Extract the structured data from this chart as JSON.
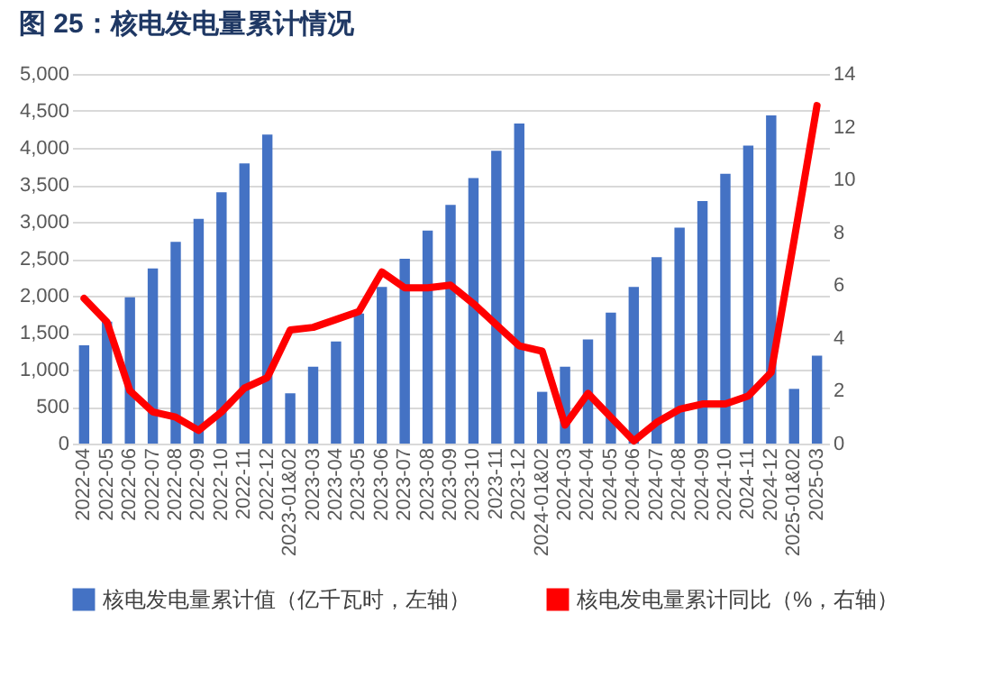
{
  "chart_data": {
    "type": "bar",
    "title": "图 25：核电发电量累计情况",
    "categories": [
      "2022-04",
      "2022-05",
      "2022-06",
      "2022-07",
      "2022-08",
      "2022-09",
      "2022-10",
      "2022-11",
      "2022-12",
      "2023-01&02",
      "2023-03",
      "2023-04",
      "2023-05",
      "2023-06",
      "2023-07",
      "2023-08",
      "2023-09",
      "2023-10",
      "2023-11",
      "2023-12",
      "2024-01&02",
      "2024-03",
      "2024-04",
      "2024-05",
      "2024-06",
      "2024-07",
      "2024-08",
      "2024-09",
      "2024-10",
      "2024-11",
      "2024-12",
      "2025-01&02",
      "2025-03"
    ],
    "series": [
      {
        "name": "核电发电量累计值（亿千瓦时，左轴）",
        "color": "#4472c4",
        "values": [
          1330,
          1650,
          1980,
          2370,
          2730,
          3040,
          3400,
          3790,
          4180,
          680,
          1040,
          1380,
          1760,
          2120,
          2500,
          2880,
          3230,
          3590,
          3960,
          4330,
          700,
          1040,
          1410,
          1770,
          2120,
          2520,
          2920,
          3280,
          3650,
          4030,
          4440,
          740,
          1190
        ]
      },
      {
        "name": "核电发电量累计同比（%，右轴）",
        "color": "#ff0000",
        "type": "line",
        "axis": "y2",
        "values": [
          5.5,
          4.6,
          2.0,
          1.2,
          1.0,
          0.5,
          1.2,
          2.1,
          2.5,
          4.3,
          4.4,
          4.7,
          5.0,
          6.5,
          5.9,
          5.9,
          6.0,
          5.3,
          4.5,
          3.7,
          3.5,
          0.7,
          1.9,
          1.0,
          0.1,
          0.8,
          1.3,
          1.5,
          1.5,
          1.8,
          2.7,
          7.7,
          12.8
        ]
      }
    ],
    "ylim": [
      0,
      5000
    ],
    "yticks": [
      {
        "value": 0,
        "label": "0"
      },
      {
        "value": 500,
        "label": "500"
      },
      {
        "value": 1000,
        "label": "1,000"
      },
      {
        "value": 1500,
        "label": "1,500"
      },
      {
        "value": 2000,
        "label": "2,000"
      },
      {
        "value": 2500,
        "label": "2,500"
      },
      {
        "value": 3000,
        "label": "3,000"
      },
      {
        "value": 3500,
        "label": "3,500"
      },
      {
        "value": 4000,
        "label": "4,000"
      },
      {
        "value": 4500,
        "label": "4,500"
      },
      {
        "value": 5000,
        "label": "5,000"
      }
    ],
    "y2lim": [
      0,
      14
    ],
    "y2ticks": [
      0,
      2,
      4,
      6,
      8,
      10,
      12,
      14
    ],
    "grid": "y",
    "legend": "bottom",
    "marker": "none",
    "line_style": "solid"
  }
}
